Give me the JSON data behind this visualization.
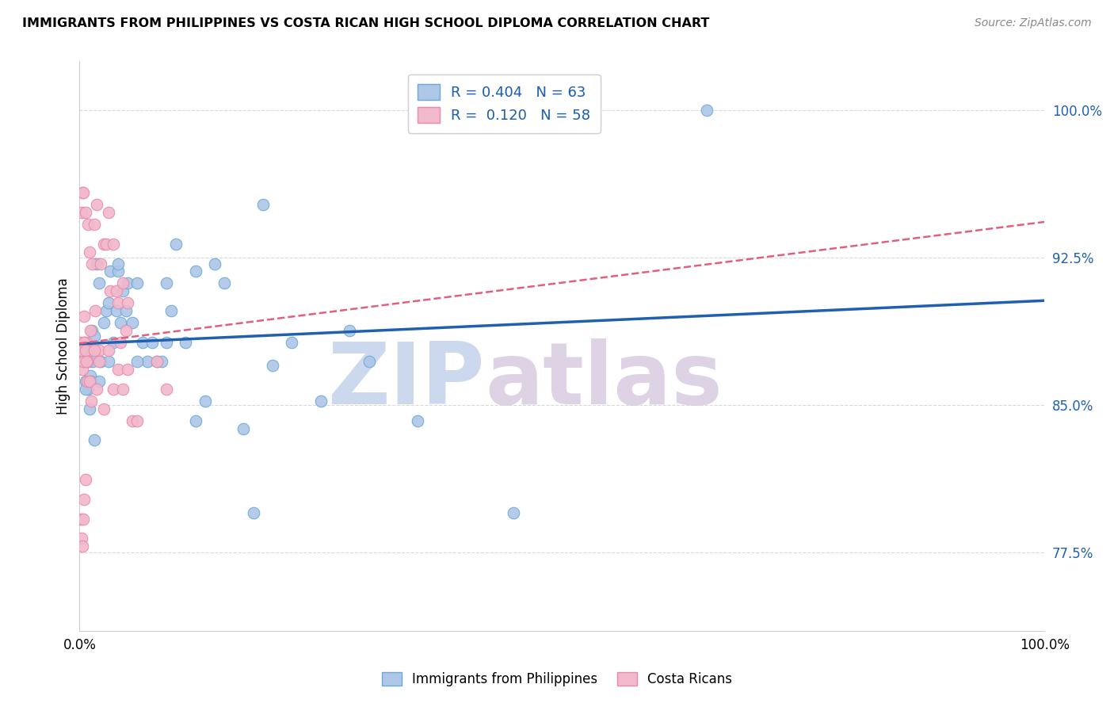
{
  "title": "IMMIGRANTS FROM PHILIPPINES VS COSTA RICAN HIGH SCHOOL DIPLOMA CORRELATION CHART",
  "source": "Source: ZipAtlas.com",
  "ylabel": "High School Diploma",
  "yticks_labels": [
    "77.5%",
    "85.0%",
    "92.5%",
    "100.0%"
  ],
  "ytick_vals": [
    0.775,
    0.85,
    0.925,
    1.0
  ],
  "legend_blue": {
    "R": "0.404",
    "N": "63",
    "label": "Immigrants from Philippines"
  },
  "legend_pink": {
    "R": "0.120",
    "N": "58",
    "label": "Costa Ricans"
  },
  "blue_fill_color": "#aec6e8",
  "pink_fill_color": "#f2b8cb",
  "blue_edge_color": "#6aaad4",
  "pink_edge_color": "#e88aaa",
  "blue_line_color": "#2060b0",
  "pink_line_color": "#e06080",
  "text_blue_color": "#2060b0",
  "watermark_zip_color": "#ccd8ee",
  "watermark_atlas_color": "#d8cce0",
  "xlim": [
    0.0,
    1.0
  ],
  "ylim": [
    0.735,
    1.025
  ],
  "blue_x": [
    0.003,
    0.004,
    0.005,
    0.006,
    0.007,
    0.008,
    0.009,
    0.01,
    0.011,
    0.012,
    0.013,
    0.014,
    0.015,
    0.016,
    0.018,
    0.02,
    0.022,
    0.025,
    0.028,
    0.03,
    0.032,
    0.035,
    0.038,
    0.04,
    0.042,
    0.045,
    0.048,
    0.05,
    0.055,
    0.06,
    0.065,
    0.07,
    0.075,
    0.08,
    0.085,
    0.09,
    0.095,
    0.1,
    0.11,
    0.12,
    0.13,
    0.14,
    0.15,
    0.17,
    0.19,
    0.22,
    0.25,
    0.28,
    0.3,
    0.35,
    0.006,
    0.01,
    0.015,
    0.02,
    0.03,
    0.04,
    0.06,
    0.09,
    0.12,
    0.18,
    0.2,
    0.45,
    0.65
  ],
  "blue_y": [
    0.878,
    0.872,
    0.882,
    0.862,
    0.872,
    0.878,
    0.858,
    0.872,
    0.865,
    0.862,
    0.888,
    0.872,
    0.885,
    0.875,
    0.922,
    0.912,
    0.872,
    0.892,
    0.898,
    0.902,
    0.918,
    0.882,
    0.898,
    0.918,
    0.892,
    0.908,
    0.898,
    0.912,
    0.892,
    0.912,
    0.882,
    0.872,
    0.882,
    0.872,
    0.872,
    0.912,
    0.898,
    0.932,
    0.882,
    0.918,
    0.852,
    0.922,
    0.912,
    0.838,
    0.952,
    0.882,
    0.852,
    0.888,
    0.872,
    0.842,
    0.858,
    0.848,
    0.832,
    0.862,
    0.872,
    0.922,
    0.872,
    0.882,
    0.842,
    0.795,
    0.87,
    0.795,
    1.0
  ],
  "pink_x": [
    0.001,
    0.002,
    0.003,
    0.004,
    0.005,
    0.005,
    0.006,
    0.007,
    0.008,
    0.009,
    0.01,
    0.011,
    0.012,
    0.013,
    0.015,
    0.016,
    0.018,
    0.02,
    0.022,
    0.025,
    0.028,
    0.03,
    0.032,
    0.035,
    0.038,
    0.04,
    0.042,
    0.045,
    0.048,
    0.05,
    0.002,
    0.003,
    0.004,
    0.005,
    0.006,
    0.007,
    0.008,
    0.01,
    0.012,
    0.015,
    0.018,
    0.02,
    0.025,
    0.03,
    0.035,
    0.04,
    0.045,
    0.05,
    0.055,
    0.06,
    0.001,
    0.002,
    0.003,
    0.004,
    0.005,
    0.006,
    0.08,
    0.09
  ],
  "pink_y": [
    0.882,
    0.948,
    0.958,
    0.958,
    0.872,
    0.895,
    0.948,
    0.882,
    0.872,
    0.942,
    0.928,
    0.888,
    0.878,
    0.922,
    0.942,
    0.898,
    0.952,
    0.878,
    0.922,
    0.932,
    0.932,
    0.948,
    0.908,
    0.932,
    0.908,
    0.902,
    0.882,
    0.912,
    0.888,
    0.902,
    0.878,
    0.868,
    0.872,
    0.882,
    0.878,
    0.872,
    0.862,
    0.862,
    0.852,
    0.878,
    0.858,
    0.872,
    0.848,
    0.878,
    0.858,
    0.868,
    0.858,
    0.868,
    0.842,
    0.842,
    0.792,
    0.782,
    0.778,
    0.792,
    0.802,
    0.812,
    0.872,
    0.858
  ],
  "grid_color": "#d8d8d8",
  "spine_color": "#cccccc"
}
